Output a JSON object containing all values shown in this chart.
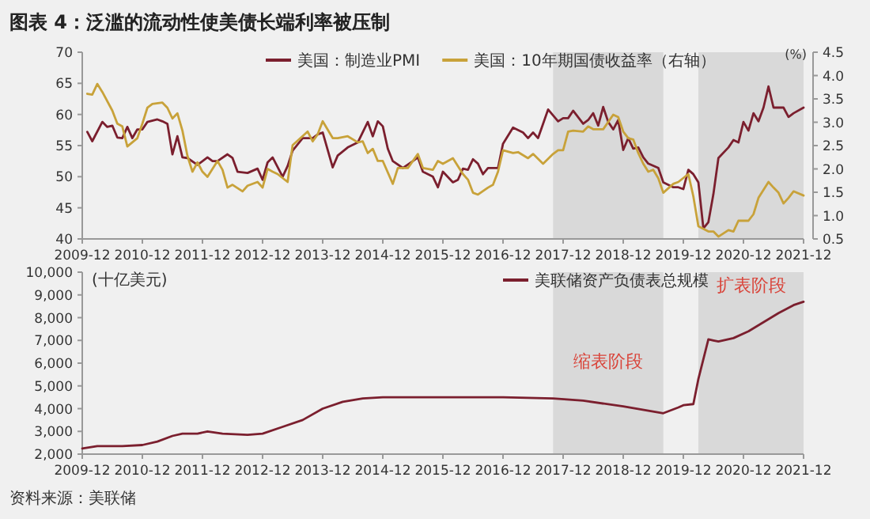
{
  "chart_data": [
    {
      "type": "line",
      "title": "图表 4：泛滥的流动性使美债长端利率被压制",
      "y2label": "(%)",
      "legend": "top",
      "xlim": [
        "2009-12",
        "2021-12"
      ],
      "xticks": [
        "2009-12",
        "2010-12",
        "2011-12",
        "2012-12",
        "2013-12",
        "2014-12",
        "2015-12",
        "2016-12",
        "2017-12",
        "2018-12",
        "2019-12",
        "2020-12",
        "2021-12"
      ],
      "ylim": [
        40,
        70
      ],
      "yticks": [
        40,
        45,
        50,
        55,
        60,
        65,
        70
      ],
      "y2lim": [
        0.5,
        4.5
      ],
      "y2ticks": [
        0.5,
        {
          "value": 1,
          "label": "1.0"
        },
        1.5,
        {
          "value": 2,
          "label": "2.0"
        },
        2.5,
        {
          "value": 3,
          "label": "3.0"
        },
        3.5,
        {
          "value": 4,
          "label": "4.0"
        },
        4.5
      ],
      "bands": [
        {
          "axis": "x",
          "from": "2017-10",
          "to": "2019-08",
          "color": "#d9d9d9"
        },
        {
          "axis": "x",
          "from": "2020-03",
          "to": "2021-12",
          "color": "#d9d9d9"
        }
      ],
      "series": [
        {
          "name": "美国：制造业PMI",
          "color": "#7b1f2e",
          "x": [
            "2010-01",
            "2010-02",
            "2010-04",
            "2010-05",
            "2010-06",
            "2010-07",
            "2010-08",
            "2010-09",
            "2010-10",
            "2010-11",
            "2010-12",
            "2011-01",
            "2011-03",
            "2011-04",
            "2011-05",
            "2011-06",
            "2011-07",
            "2011-08",
            "2011-09",
            "2011-11",
            "2012-01",
            "2012-02",
            "2012-03",
            "2012-05",
            "2012-06",
            "2012-07",
            "2012-09",
            "2012-11",
            "2012-12",
            "2013-01",
            "2013-02",
            "2013-04",
            "2013-05",
            "2013-06",
            "2013-08",
            "2013-10",
            "2013-11",
            "2013-12",
            "2014-02",
            "2014-03",
            "2014-05",
            "2014-07",
            "2014-09",
            "2014-10",
            "2014-11",
            "2014-12",
            "2015-01",
            "2015-02",
            "2015-04",
            "2015-06",
            "2015-07",
            "2015-08",
            "2015-10",
            "2015-11",
            "2015-12",
            "2016-02",
            "2016-03",
            "2016-04",
            "2016-05",
            "2016-06",
            "2016-07",
            "2016-08",
            "2016-09",
            "2016-11",
            "2016-12",
            "2017-02",
            "2017-04",
            "2017-05",
            "2017-06",
            "2017-07",
            "2017-08",
            "2017-09",
            "2017-11",
            "2017-12",
            "2018-01",
            "2018-02",
            "2018-04",
            "2018-05",
            "2018-06",
            "2018-07",
            "2018-08",
            "2018-09",
            "2018-10",
            "2018-11",
            "2018-12",
            "2019-01",
            "2019-02",
            "2019-03",
            "2019-04",
            "2019-05",
            "2019-07",
            "2019-08",
            "2019-10",
            "2019-11",
            "2019-12",
            "2020-01",
            "2020-02",
            "2020-03",
            "2020-04",
            "2020-05",
            "2020-06",
            "2020-07",
            "2020-09",
            "2020-10",
            "2020-11",
            "2020-12",
            "2021-01",
            "2021-02",
            "2021-03",
            "2021-04",
            "2021-05",
            "2021-06",
            "2021-08",
            "2021-09",
            "2021-10",
            "2021-12"
          ],
          "values": [
            57.2,
            55.7,
            58.8,
            58.0,
            58.2,
            56.3,
            56.2,
            58.0,
            56.2,
            57.6,
            57.6,
            58.8,
            59.2,
            58.9,
            58.5,
            53.6,
            56.5,
            53.1,
            53.0,
            51.9,
            53.1,
            52.5,
            52.5,
            53.6,
            53.0,
            50.8,
            50.6,
            51.3,
            49.5,
            52.3,
            53.1,
            50.0,
            51.7,
            54.2,
            56.2,
            56.2,
            56.8,
            57.1,
            51.5,
            53.4,
            54.7,
            55.5,
            58.8,
            56.5,
            58.9,
            58.1,
            54.5,
            52.5,
            51.4,
            52.5,
            53.1,
            50.8,
            50.0,
            48.3,
            50.8,
            49.1,
            49.5,
            51.3,
            51.1,
            52.8,
            52.1,
            50.4,
            51.4,
            51.4,
            55.3,
            57.9,
            57.1,
            56.2,
            57.1,
            56.2,
            58.5,
            60.8,
            58.9,
            59.4,
            59.4,
            60.6,
            58.5,
            59.1,
            60.2,
            58.2,
            61.2,
            58.8,
            57.6,
            59.1,
            54.3,
            56.2,
            54.5,
            54.7,
            53.1,
            52.1,
            51.4,
            49.1,
            48.3,
            48.3,
            48.0,
            51.1,
            50.4,
            49.1,
            41.7,
            42.7,
            47.2,
            53.0,
            54.7,
            55.9,
            55.5,
            58.8,
            57.4,
            60.2,
            58.9,
            61.1,
            64.5,
            61.1,
            61.1,
            59.6,
            60.2,
            61.1
          ]
        },
        {
          "name": "美国：10年期国债收益率（右轴）",
          "color": "#c8a23a",
          "axis": "y2",
          "x": [
            "2010-01",
            "2010-02",
            "2010-03",
            "2010-04",
            "2010-06",
            "2010-07",
            "2010-08",
            "2010-09",
            "2010-10",
            "2010-11",
            "2010-12",
            "2011-01",
            "2011-02",
            "2011-04",
            "2011-05",
            "2011-06",
            "2011-07",
            "2011-08",
            "2011-09",
            "2011-10",
            "2011-11",
            "2011-12",
            "2012-01",
            "2012-03",
            "2012-04",
            "2012-05",
            "2012-06",
            "2012-08",
            "2012-09",
            "2012-11",
            "2012-12",
            "2013-01",
            "2013-02",
            "2013-03",
            "2013-05",
            "2013-06",
            "2013-09",
            "2013-10",
            "2013-11",
            "2013-12",
            "2014-02",
            "2014-03",
            "2014-05",
            "2014-07",
            "2014-08",
            "2014-09",
            "2014-10",
            "2014-11",
            "2014-12",
            "2015-02",
            "2015-03",
            "2015-05",
            "2015-07",
            "2015-08",
            "2015-10",
            "2015-11",
            "2015-12",
            "2016-02",
            "2016-04",
            "2016-05",
            "2016-06",
            "2016-07",
            "2016-09",
            "2016-10",
            "2016-11",
            "2016-12",
            "2017-02",
            "2017-03",
            "2017-05",
            "2017-06",
            "2017-08",
            "2017-10",
            "2017-11",
            "2017-12",
            "2018-01",
            "2018-02",
            "2018-04",
            "2018-05",
            "2018-06",
            "2018-08",
            "2018-10",
            "2018-11",
            "2018-12",
            "2019-01",
            "2019-02",
            "2019-03",
            "2019-04",
            "2019-05",
            "2019-06",
            "2019-07",
            "2019-08",
            "2019-10",
            "2019-11",
            "2020-01",
            "2020-02",
            "2020-03",
            "2020-05",
            "2020-06",
            "2020-07",
            "2020-09",
            "2020-10",
            "2020-11",
            "2021-01",
            "2021-02",
            "2021-03",
            "2021-05",
            "2021-06",
            "2021-07",
            "2021-08",
            "2021-09",
            "2021-10",
            "2021-12"
          ],
          "values": [
            3.61,
            3.59,
            3.82,
            3.65,
            3.25,
            2.97,
            2.91,
            2.48,
            2.57,
            2.66,
            2.97,
            3.31,
            3.39,
            3.42,
            3.31,
            3.08,
            3.19,
            2.82,
            2.28,
            1.94,
            2.14,
            1.94,
            1.83,
            2.17,
            1.98,
            1.6,
            1.66,
            1.52,
            1.64,
            1.72,
            1.6,
            2.0,
            1.94,
            1.89,
            1.72,
            2.51,
            2.8,
            2.59,
            2.74,
            3.02,
            2.66,
            2.66,
            2.7,
            2.57,
            2.59,
            2.34,
            2.43,
            2.17,
            2.17,
            1.68,
            2.02,
            2.02,
            2.32,
            2.02,
            1.98,
            2.17,
            2.11,
            2.23,
            1.89,
            1.77,
            1.49,
            1.45,
            1.6,
            1.66,
            1.94,
            2.4,
            2.34,
            2.36,
            2.23,
            2.32,
            2.11,
            2.32,
            2.4,
            2.4,
            2.8,
            2.82,
            2.8,
            2.91,
            2.85,
            2.85,
            3.16,
            3.11,
            2.8,
            2.66,
            2.63,
            2.34,
            2.11,
            1.94,
            1.98,
            1.8,
            1.49,
            1.68,
            1.72,
            1.89,
            1.41,
            0.77,
            0.66,
            0.66,
            0.55,
            0.69,
            0.66,
            0.89,
            0.89,
            1.03,
            1.38,
            1.72,
            1.6,
            1.49,
            1.26,
            1.38,
            1.52,
            1.43
          ]
        }
      ]
    },
    {
      "type": "line",
      "ylabel": "(十亿美元)",
      "legend": "top right",
      "annotations": [
        "资料来源：美联储"
      ],
      "xlim": [
        "2009-12",
        "2021-12"
      ],
      "xticks": [
        "2009-12",
        "2010-12",
        "2011-12",
        "2012-12",
        "2013-12",
        "2014-12",
        "2015-12",
        "2016-12",
        "2017-12",
        "2018-12",
        "2019-12",
        "2020-12",
        "2021-12"
      ],
      "ylim": [
        2000,
        10000
      ],
      "yticks": [
        {
          "value": 2000,
          "label": "2,000"
        },
        {
          "value": 3000,
          "label": "3,000"
        },
        {
          "value": 4000,
          "label": "4,000"
        },
        {
          "value": 5000,
          "label": "5,000"
        },
        {
          "value": 6000,
          "label": "6,000"
        },
        {
          "value": 7000,
          "label": "7,000"
        },
        {
          "value": 8000,
          "label": "8,000"
        },
        {
          "value": 9000,
          "label": "9,000"
        },
        {
          "value": 10000,
          "label": "10,000"
        }
      ],
      "bands": [
        {
          "axis": "x",
          "from": "2017-10",
          "to": "2019-08",
          "color": "#d9d9d9",
          "label": "缩表阶段"
        },
        {
          "axis": "x",
          "from": "2020-03",
          "to": "2021-12",
          "color": "#d9d9d9",
          "label": "扩表阶段"
        }
      ],
      "series": [
        {
          "name": "美联储资产负债表总规模",
          "color": "#7b1f2e",
          "x": [
            "2009-12",
            "2010-03",
            "2010-08",
            "2010-12",
            "2011-03",
            "2011-06",
            "2011-08",
            "2011-11",
            "2012-01",
            "2012-04",
            "2012-09",
            "2012-12",
            "2013-04",
            "2013-08",
            "2013-12",
            "2014-04",
            "2014-08",
            "2014-12",
            "2015-12",
            "2016-12",
            "2017-10",
            "2018-04",
            "2018-12",
            "2019-08",
            "2019-11",
            "2019-12",
            "2020-02",
            "2020-03",
            "2020-05",
            "2020-06",
            "2020-07",
            "2020-10",
            "2021-01",
            "2021-04",
            "2021-07",
            "2021-10",
            "2021-12"
          ],
          "values": [
            2250,
            2350,
            2350,
            2400,
            2550,
            2800,
            2900,
            2900,
            3000,
            2900,
            2850,
            2900,
            3200,
            3500,
            4000,
            4300,
            4450,
            4500,
            4500,
            4500,
            4450,
            4350,
            4100,
            3800,
            4050,
            4150,
            4200,
            5300,
            7050,
            7000,
            6950,
            7100,
            7400,
            7800,
            8200,
            8550,
            8700
          ]
        }
      ]
    }
  ]
}
